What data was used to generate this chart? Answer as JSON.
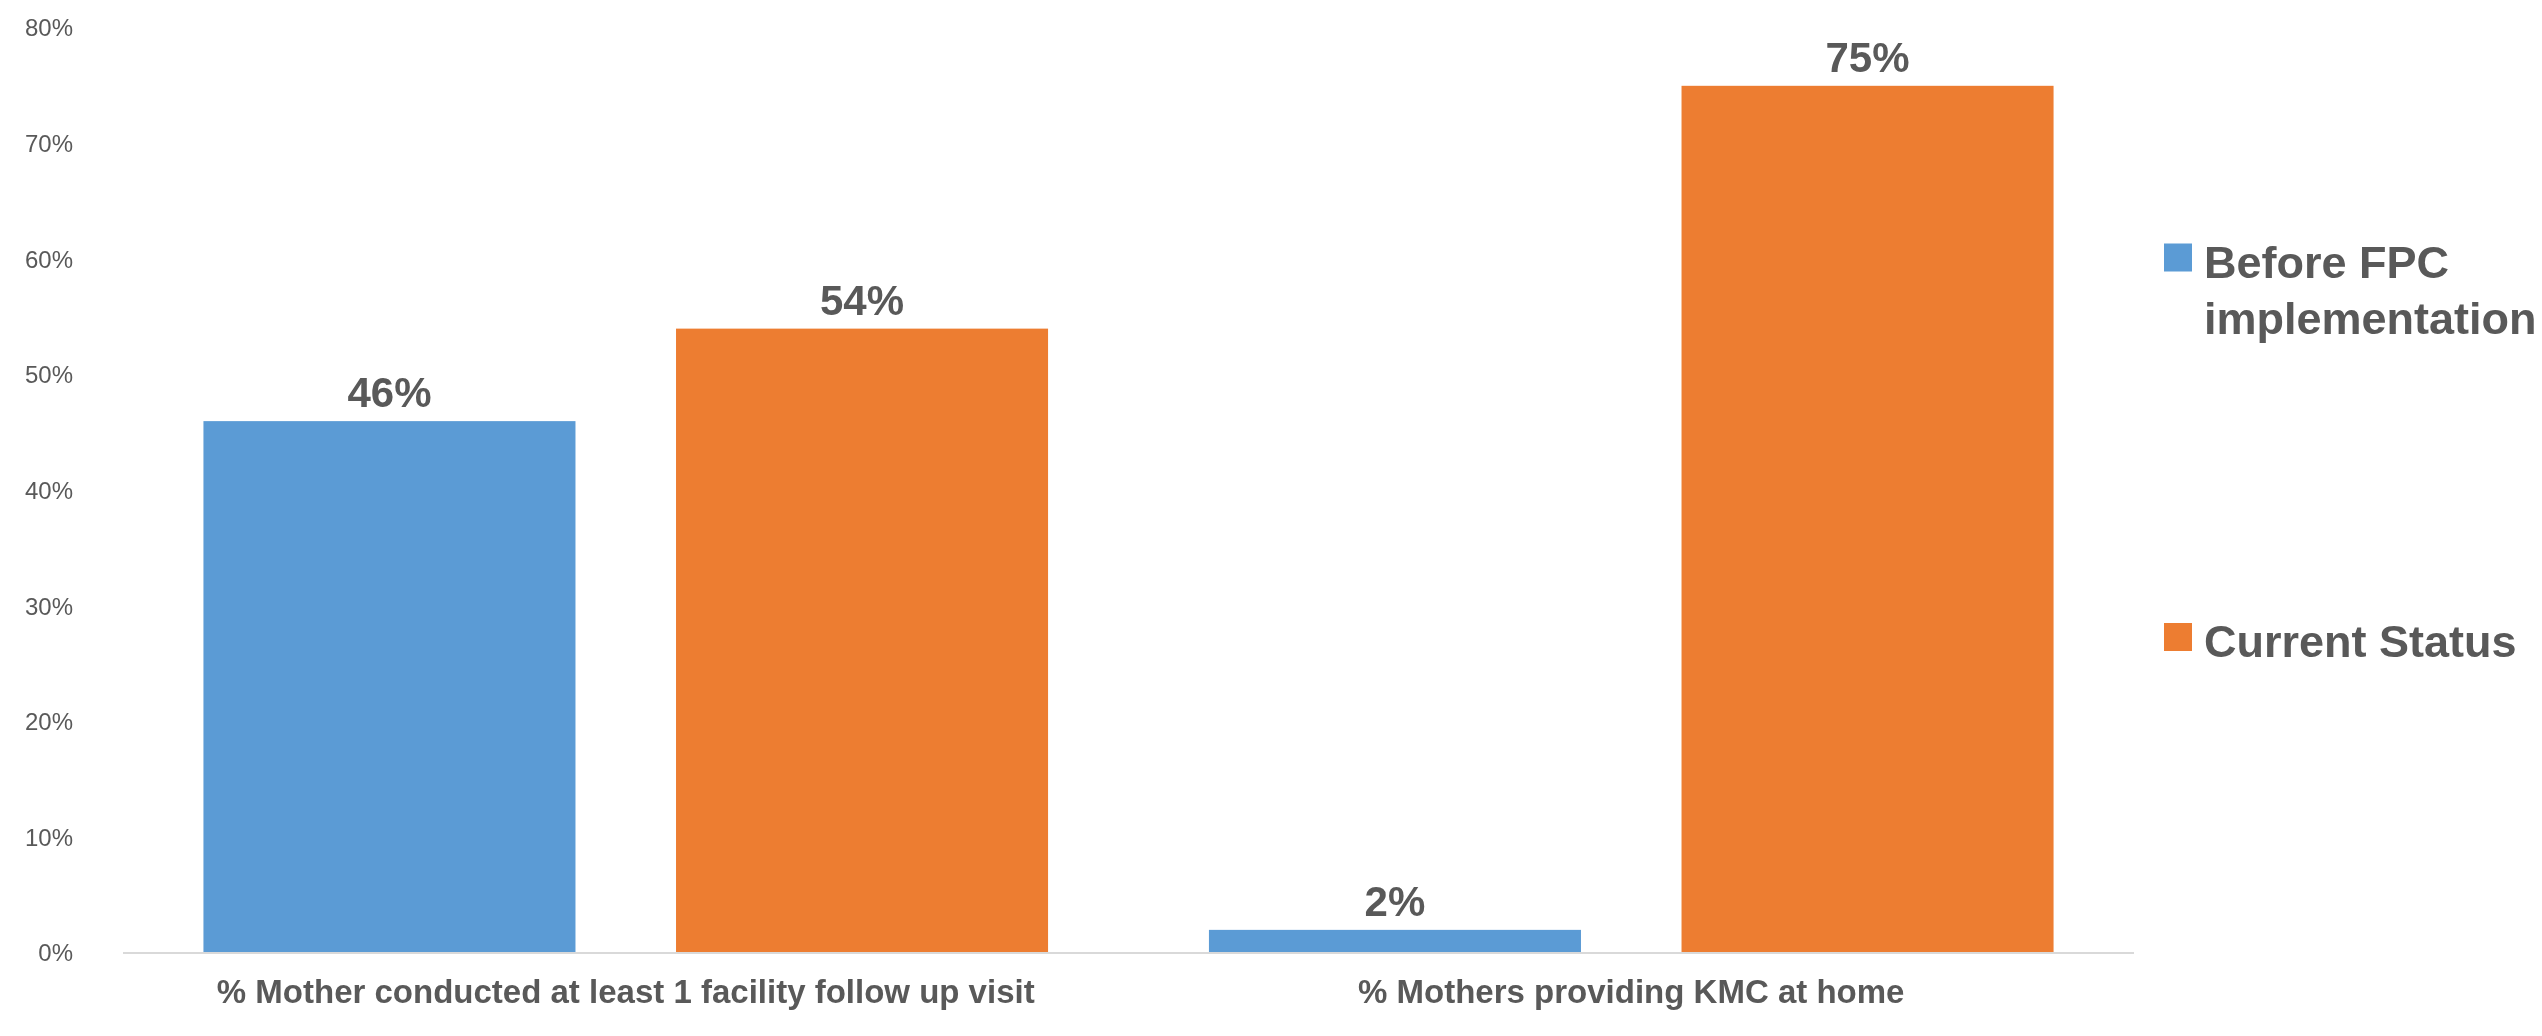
{
  "chart_data": {
    "type": "bar",
    "categories": [
      "% Mother conducted at least 1 facility follow up visit",
      "% Mothers providing KMC at home"
    ],
    "series": [
      {
        "name": "Before FPC implementation",
        "color": "#5b9bd5",
        "values": [
          46,
          2
        ],
        "value_labels": [
          "46%",
          "2%"
        ]
      },
      {
        "name": "Current Status",
        "color": "#ed7d31",
        "values": [
          54,
          75
        ],
        "value_labels": [
          "54%",
          "75%"
        ]
      }
    ],
    "ylim": [
      0,
      80
    ],
    "yticks": [
      {
        "value": 0,
        "label": "0%"
      },
      {
        "value": 10,
        "label": "10%"
      },
      {
        "value": 20,
        "label": "20%"
      },
      {
        "value": 30,
        "label": "30%"
      },
      {
        "value": 40,
        "label": "40%"
      },
      {
        "value": 50,
        "label": "50%"
      },
      {
        "value": 60,
        "label": "60%"
      },
      {
        "value": 70,
        "label": "70%"
      },
      {
        "value": 80,
        "label": "80%"
      }
    ],
    "grid": false,
    "legend": "right"
  }
}
